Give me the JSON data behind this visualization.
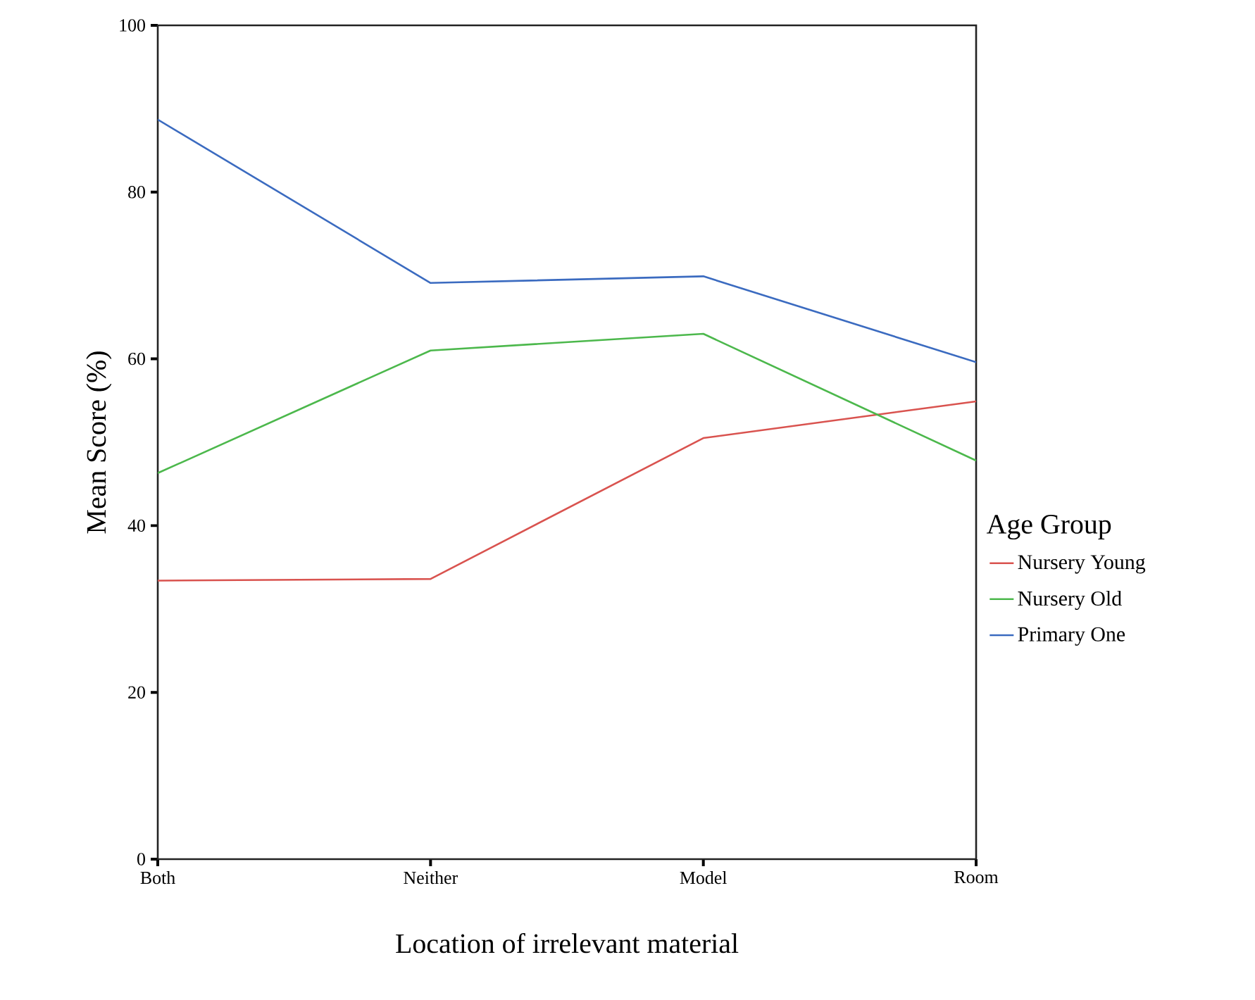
{
  "chart_data": {
    "type": "line",
    "xlabel": "Location of irrelevant material",
    "ylabel": "Mean Score (%)",
    "legend_title": "Age Group",
    "legend": "right",
    "grid": false,
    "marker": "none",
    "line_style": "solid",
    "categories": [
      "Both",
      "Neither",
      "Model",
      "Room"
    ],
    "ylim": [
      0,
      100
    ],
    "yticks": [
      0,
      20,
      40,
      60,
      80,
      100
    ],
    "series": [
      {
        "name": "Nursery Young",
        "color": "#d9534f",
        "values": [
          33.4,
          33.6,
          50.5,
          54.9
        ]
      },
      {
        "name": "Nursery Old",
        "color": "#4cb84c",
        "values": [
          46.3,
          61.0,
          63.0,
          47.8
        ]
      },
      {
        "name": "Primary One",
        "color": "#3b6bc0",
        "values": [
          88.7,
          69.1,
          69.9,
          59.6
        ]
      }
    ]
  }
}
